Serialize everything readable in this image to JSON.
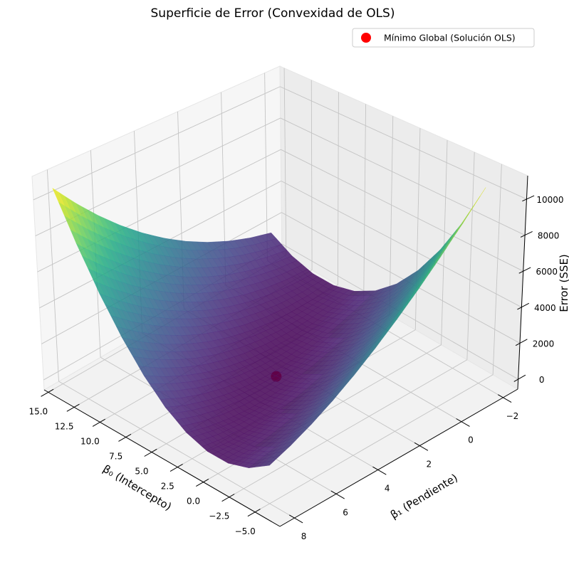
{
  "chart_data": {
    "type": "surface",
    "title": "Superficie de Error (Convexidad de OLS)",
    "xlabel": "β₀ (Intercepto)",
    "ylabel": "β₁ (Pendiente)",
    "zlabel": "Error (SSE)",
    "xlim": [
      -7.4,
      15.4
    ],
    "ylim": [
      -2.7,
      8.7
    ],
    "zlim": [
      -550,
      11300
    ],
    "xticks": [
      "15.0",
      "12.5",
      "10.0",
      "7.5",
      "5.0",
      "2.5",
      "0.0",
      "−2.5",
      "−5.0"
    ],
    "xtick_values": [
      15,
      12.5,
      10,
      7.5,
      5,
      2.5,
      0,
      -2.5,
      -5
    ],
    "yticks": [
      "−2",
      "0",
      "2",
      "4",
      "6",
      "8"
    ],
    "ytick_values": [
      -2,
      0,
      2,
      4,
      6,
      8
    ],
    "zticks": [
      "0",
      "2000",
      "4000",
      "6000",
      "8000",
      "10000"
    ],
    "ztick_values": [
      0,
      2000,
      4000,
      6000,
      8000,
      10000
    ],
    "grid": true,
    "colormap": "viridis",
    "surface": {
      "b0": [
        -5,
        -3,
        -1,
        1,
        3,
        5,
        7,
        9,
        11,
        13,
        15
      ],
      "b1": [
        -2,
        -1,
        0,
        1,
        2,
        3,
        4,
        5,
        6,
        7,
        8
      ],
      "z": [
        [
          10375,
          7855,
          5695,
          3895,
          2455,
          1375,
          655,
          295,
          295,
          655,
          1375
        ],
        [
          8980,
          6640,
          4660,
          3040,
          1780,
          880,
          340,
          160,
          340,
          880,
          1780
        ],
        [
          7695,
          5535,
          3735,
          2295,
          1215,
          495,
          135,
          135,
          495,
          1215,
          2295
        ],
        [
          6520,
          4540,
          2920,
          1660,
          760,
          220,
          40,
          220,
          760,
          1660,
          2920
        ],
        [
          5455,
          3655,
          2215,
          1135,
          415,
          55,
          55,
          415,
          1135,
          2215,
          3655
        ],
        [
          4500,
          2880,
          1620,
          720,
          180,
          0,
          180,
          720,
          1620,
          2880,
          4500
        ],
        [
          3655,
          2215,
          1135,
          415,
          55,
          55,
          415,
          1135,
          2215,
          3655,
          5455
        ],
        [
          2920,
          1660,
          760,
          220,
          40,
          220,
          760,
          1660,
          2920,
          4540,
          6520
        ],
        [
          2295,
          1215,
          495,
          135,
          135,
          495,
          1215,
          2295,
          3735,
          5535,
          7695
        ],
        [
          1780,
          880,
          340,
          160,
          340,
          880,
          1780,
          3040,
          4660,
          6640,
          8980
        ],
        [
          1375,
          655,
          295,
          295,
          655,
          1375,
          2455,
          3895,
          5695,
          7855,
          10375
        ]
      ]
    },
    "minimum_point": {
      "b0": 5,
      "b1": 3,
      "z": 0,
      "color": "#ff0000"
    },
    "legend": {
      "placement": "top-right",
      "entries": [
        {
          "label": "Mínimo Global (Solución OLS)",
          "color": "#ff0000",
          "marker": "circle"
        }
      ]
    }
  }
}
